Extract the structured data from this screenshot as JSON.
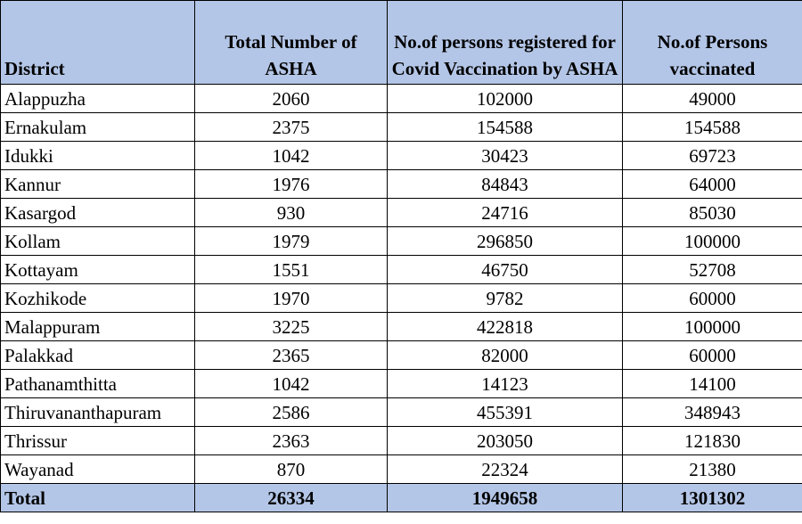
{
  "table": {
    "headers": [
      "District",
      "Total Number of ASHA",
      "No.of persons registered for Covid Vaccination by ASHA",
      "No.of Persons vaccinated"
    ],
    "rows": [
      [
        "Alappuzha",
        "2060",
        "102000",
        "49000"
      ],
      [
        "Ernakulam",
        "2375",
        "154588",
        "154588"
      ],
      [
        "Idukki",
        "1042",
        "30423",
        "69723"
      ],
      [
        "Kannur",
        "1976",
        "84843",
        "64000"
      ],
      [
        "Kasargod",
        "930",
        "24716",
        "85030"
      ],
      [
        "Kollam",
        "1979",
        "296850",
        "100000"
      ],
      [
        "Kottayam",
        "1551",
        "46750",
        "52708"
      ],
      [
        "Kozhikode",
        "1970",
        "9782",
        "60000"
      ],
      [
        "Malappuram",
        "3225",
        "422818",
        "100000"
      ],
      [
        "Palakkad",
        "2365",
        "82000",
        "60000"
      ],
      [
        "Pathanamthitta",
        "1042",
        "14123",
        "14100"
      ],
      [
        "Thiruvananthapuram",
        "2586",
        "455391",
        "348943"
      ],
      [
        "Thrissur",
        "2363",
        "203050",
        "121830"
      ],
      [
        "Wayanad",
        "870",
        "22324",
        "21380"
      ]
    ],
    "total": [
      "Total",
      "26334",
      "1949658",
      "1301302"
    ]
  },
  "colors": {
    "header_bg": "#b4c6e7",
    "border": "#000000"
  }
}
